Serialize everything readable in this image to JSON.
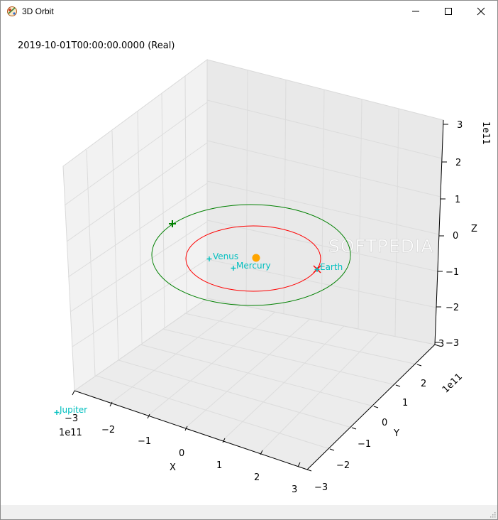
{
  "window": {
    "title": "3D Orbit",
    "icon": "orbit-app-icon",
    "controls": [
      "minimize-icon",
      "maximize-icon",
      "close-icon"
    ]
  },
  "plot": {
    "timestamp": "2019-10-01T00:00:00.0000 (Real)",
    "x_axis": {
      "label": "X",
      "exponent": "1e11",
      "ticks": [
        "−3",
        "−2",
        "−1",
        "0",
        "1",
        "2",
        "3"
      ]
    },
    "y_axis": {
      "label": "Y",
      "exponent": "1e11",
      "ticks": [
        "−3",
        "−2",
        "−1",
        "0",
        "1",
        "2",
        "3"
      ]
    },
    "z_axis": {
      "label": "Z",
      "exponent": "1e11",
      "ticks": [
        "−3",
        "−2",
        "−1",
        "0",
        "1",
        "2",
        "3"
      ]
    },
    "bodies": [
      {
        "name": "Venus",
        "color": "#00bfbf"
      },
      {
        "name": "Mercury",
        "color": "#00bfbf"
      },
      {
        "name": "Earth",
        "color": "#00bfbf"
      },
      {
        "name": "Jupiter",
        "color": "#00bfbf"
      }
    ],
    "sun_color": "#ffa500",
    "orbit_colors": {
      "inner": "#ff0000",
      "outer": "#008000"
    },
    "watermark": "SOFTPEDIA"
  }
}
